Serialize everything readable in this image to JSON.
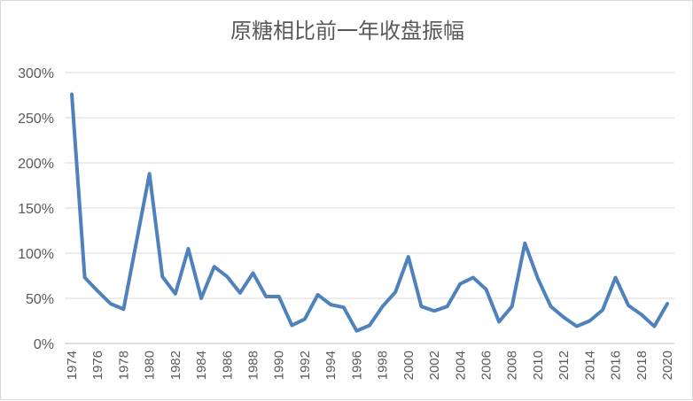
{
  "chart_data": {
    "type": "line",
    "title": "原糖相比前一年收盘振幅",
    "xlabel": "",
    "ylabel": "",
    "ylim": [
      0,
      300
    ],
    "y_ticks": [
      "0%",
      "50%",
      "100%",
      "150%",
      "200%",
      "250%",
      "300%"
    ],
    "x": [
      1974,
      1975,
      1976,
      1977,
      1978,
      1979,
      1980,
      1981,
      1982,
      1983,
      1984,
      1985,
      1986,
      1987,
      1988,
      1989,
      1990,
      1991,
      1992,
      1993,
      1994,
      1995,
      1996,
      1997,
      1998,
      1999,
      2000,
      2001,
      2002,
      2003,
      2004,
      2005,
      2006,
      2007,
      2008,
      2009,
      2010,
      2011,
      2012,
      2013,
      2014,
      2015,
      2016,
      2017,
      2018,
      2019,
      2020
    ],
    "x_tick_labels": [
      "1974",
      "1976",
      "1978",
      "1980",
      "1982",
      "1984",
      "1986",
      "1988",
      "1990",
      "1992",
      "1994",
      "1996",
      "1998",
      "2000",
      "2002",
      "2004",
      "2006",
      "2008",
      "2010",
      "2012",
      "2014",
      "2016",
      "2018",
      "2020"
    ],
    "series": [
      {
        "name": "",
        "color": "#4f81bd",
        "values": [
          276,
          73,
          58,
          44,
          38,
          113,
          188,
          74,
          55,
          105,
          50,
          85,
          74,
          56,
          78,
          52,
          52,
          20,
          27,
          54,
          43,
          40,
          14,
          20,
          41,
          57,
          96,
          41,
          36,
          41,
          66,
          73,
          60,
          24,
          41,
          111,
          72,
          41,
          29,
          19,
          25,
          37,
          73,
          42,
          32,
          19,
          44
        ]
      }
    ],
    "grid": true,
    "legend": "none"
  }
}
